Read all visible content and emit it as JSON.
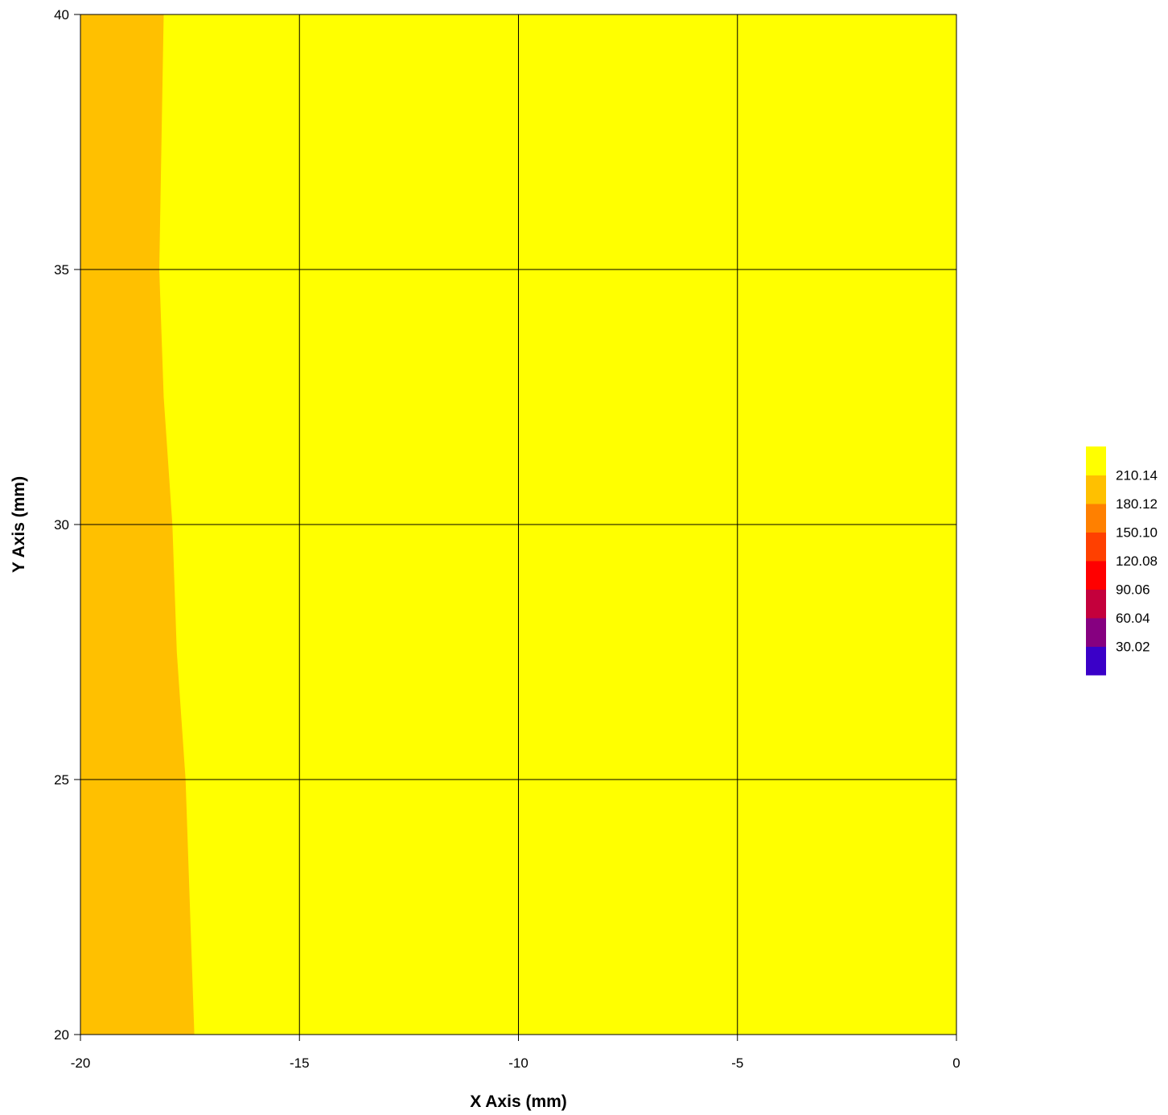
{
  "chart_data": {
    "type": "contour",
    "title": "",
    "xlabel": "X Axis (mm)",
    "ylabel": "Y Axis (mm)",
    "xlim": [
      -20,
      0
    ],
    "ylim": [
      20,
      40
    ],
    "xticks": [
      "-20",
      "-15",
      "-10",
      "-5",
      "0"
    ],
    "yticks": [
      "20",
      "25",
      "30",
      "35",
      "40"
    ],
    "grid": true,
    "legend_position": "right",
    "levels": [
      {
        "label": "",
        "color": "#3a00c8"
      },
      {
        "label": "30.02",
        "color": "#860080"
      },
      {
        "label": "60.04",
        "color": "#c4003c"
      },
      {
        "label": "90.06",
        "color": "#ff0000"
      },
      {
        "label": "120.08",
        "color": "#ff4000"
      },
      {
        "label": "150.10",
        "color": "#ff8000"
      },
      {
        "label": "180.12",
        "color": "#ffc000"
      },
      {
        "label": "210.14",
        "color": "#ffff00"
      }
    ],
    "regions": [
      {
        "level_index": 6,
        "range": "180.12–210.14",
        "boundary_x_at_y": [
          {
            "y": 40,
            "x": -18.1
          },
          {
            "y": 35,
            "x": -18.2
          },
          {
            "y": 32.5,
            "x": -18.1
          },
          {
            "y": 30,
            "x": -17.9
          },
          {
            "y": 27.5,
            "x": -17.8
          },
          {
            "y": 25,
            "x": -17.6
          },
          {
            "y": 22.5,
            "x": -17.5
          },
          {
            "y": 20,
            "x": -17.4
          }
        ]
      },
      {
        "level_index": 7,
        "range": ">210.14"
      }
    ]
  }
}
